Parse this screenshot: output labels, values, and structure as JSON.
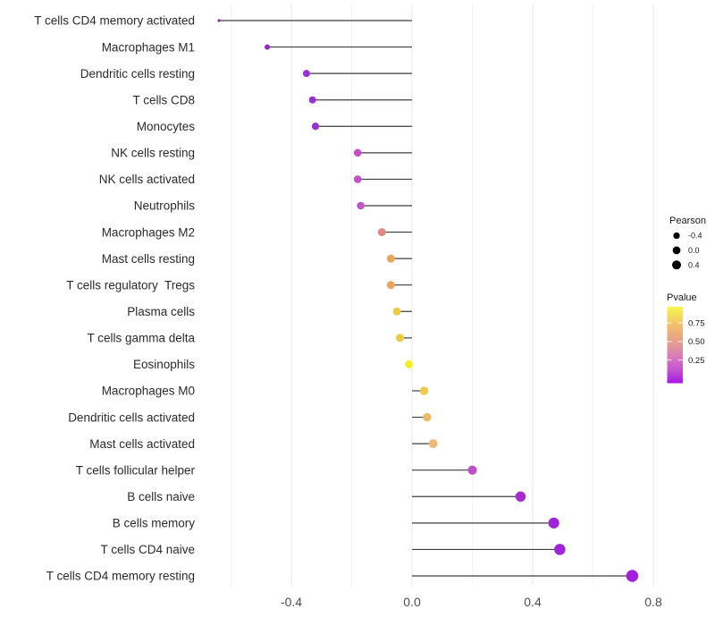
{
  "chart_data": {
    "type": "lollipop",
    "title": "",
    "xlabel": "",
    "ylabel": "",
    "xlim": [
      -0.67,
      0.82
    ],
    "x_ticks": [
      -0.4,
      0.0,
      0.4,
      0.8
    ],
    "x_tick_labels": [
      "-0.4",
      "0.0",
      "0.4",
      "0.8"
    ],
    "grid_minor_values": [
      -0.6,
      -0.2,
      0.2,
      0.6
    ],
    "grid_on": true,
    "legend_position": "right",
    "rows": [
      {
        "label": "T cells CD4 memory activated",
        "pearson": -0.64,
        "color": "#7E2ACB",
        "diameter": 3.2
      },
      {
        "label": "Macrophages M1",
        "pearson": -0.48,
        "color": "#9329D3",
        "diameter": 6.0
      },
      {
        "label": "Dendritic cells resting",
        "pearson": -0.35,
        "color": "#9B2FD3",
        "diameter": 8.0
      },
      {
        "label": "T cells CD8",
        "pearson": -0.33,
        "color": "#9B2FD3",
        "diameter": 8.0
      },
      {
        "label": "Monocytes",
        "pearson": -0.32,
        "color": "#9C30D3",
        "diameter": 8.2
      },
      {
        "label": "NK cells resting",
        "pearson": -0.18,
        "color": "#C251C8",
        "diameter": 8.6
      },
      {
        "label": "NK cells activated",
        "pearson": -0.18,
        "color": "#C251C8",
        "diameter": 8.6
      },
      {
        "label": "Neutrophils",
        "pearson": -0.17,
        "color": "#C455C6",
        "diameter": 8.6
      },
      {
        "label": "Macrophages M2",
        "pearson": -0.1,
        "color": "#E18880",
        "diameter": 9.0
      },
      {
        "label": "Mast cells resting",
        "pearson": -0.07,
        "color": "#E9A55C",
        "diameter": 9.0
      },
      {
        "label": "T cells regulatory  Tregs",
        "pearson": -0.07,
        "color": "#E9A55C",
        "diameter": 9.0
      },
      {
        "label": "Plasma cells",
        "pearson": -0.05,
        "color": "#EBCB42",
        "diameter": 9.0
      },
      {
        "label": "T cells gamma delta",
        "pearson": -0.04,
        "color": "#EBCB42",
        "diameter": 9.0
      },
      {
        "label": "Eosinophils",
        "pearson": -0.01,
        "color": "#F2EF29",
        "diameter": 9.0
      },
      {
        "label": "Macrophages M0",
        "pearson": 0.04,
        "color": "#EDC94C",
        "diameter": 9.4
      },
      {
        "label": "Dendritic cells activated",
        "pearson": 0.05,
        "color": "#EBBA69",
        "diameter": 9.4
      },
      {
        "label": "Mast cells activated",
        "pearson": 0.07,
        "color": "#EDB97B",
        "diameter": 10.0
      },
      {
        "label": "T cells follicular helper",
        "pearson": 0.2,
        "color": "#BE50C6",
        "diameter": 10.2
      },
      {
        "label": "B cells naive",
        "pearson": 0.36,
        "color": "#A62BD4",
        "diameter": 11.5
      },
      {
        "label": "B cells memory",
        "pearson": 0.47,
        "color": "#A024D8",
        "diameter": 12.2
      },
      {
        "label": "T cells CD4 naive",
        "pearson": 0.49,
        "color": "#A024D8",
        "diameter": 12.5
      },
      {
        "label": "T cells CD4 memory resting",
        "pearson": 0.73,
        "color": "#A31FDE",
        "diameter": 13.5
      }
    ],
    "legend_size": {
      "title": "Pearson",
      "dot_color": "#000000",
      "entries": [
        {
          "label": "-0.4",
          "diameter": 7.3
        },
        {
          "label": "0.0",
          "diameter": 8.7
        },
        {
          "label": "0.4",
          "diameter": 10.0
        }
      ]
    },
    "legend_color": {
      "title": "Pvalue",
      "tick_labels": [
        "0.75",
        "0.50",
        "0.25"
      ],
      "gradient_top_to_bottom": [
        "#F9F64B",
        "#F4D163",
        "#EFAE76",
        "#E29A96",
        "#D677BE",
        "#C252CE",
        "#A816E6"
      ]
    }
  },
  "colors": {
    "background": "#FFFFFF",
    "stem": "#3F3F3F",
    "grid_major": "#E9E9E9",
    "grid_minor": "#F4F4F4",
    "axis_tick_text": "#4D4D4D",
    "row_label_text": "#2B2B2B",
    "legend_text": "#1A1A1A",
    "colorbar_tick": "#FFFFFF"
  }
}
